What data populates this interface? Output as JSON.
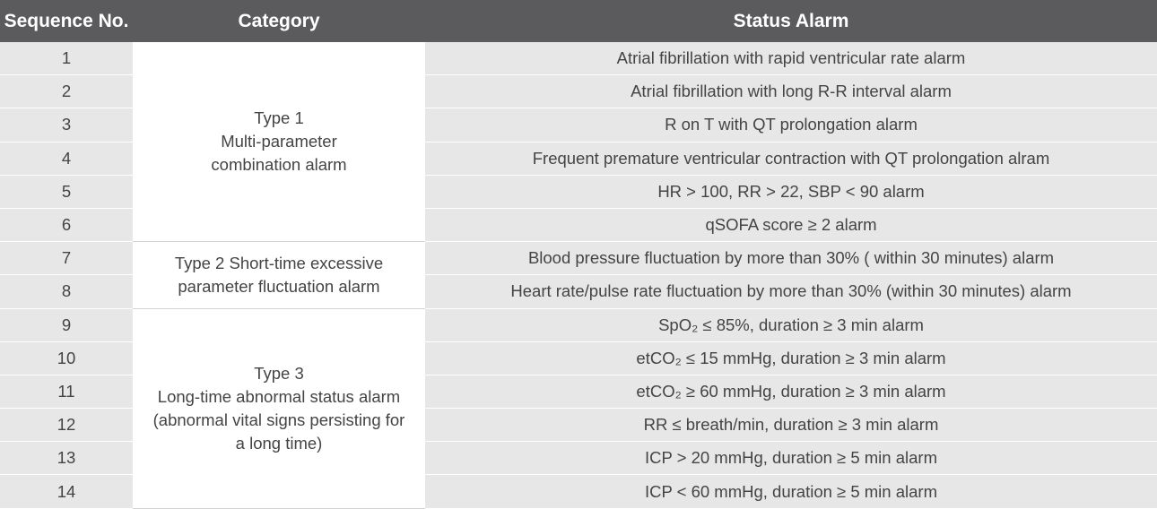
{
  "table": {
    "header": [
      "Sequence No.",
      "Category",
      "Status Alarm"
    ],
    "groups": [
      {
        "category": [
          "Type 1",
          "Multi-parameter",
          "combination alarm"
        ],
        "rows": [
          [
            1,
            "Atrial fibrillation with rapid ventricular rate alarm"
          ],
          [
            2,
            "Atrial fibrillation with long R-R interval alarm"
          ],
          [
            3,
            "R on T with QT prolongation alarm"
          ],
          [
            4,
            "Frequent premature ventricular contraction with QT prolongation alram"
          ],
          [
            5,
            "HR > 100, RR > 22, SBP < 90 alarm"
          ],
          [
            6,
            "qSOFA score ≥ 2 alarm"
          ]
        ]
      },
      {
        "category": [
          "Type 2 Short-time excessive",
          "parameter fluctuation alarm"
        ],
        "rows": [
          [
            7,
            "Blood pressure fluctuation by more than 30% ( within 30 minutes) alarm"
          ],
          [
            8,
            "Heart rate/pulse rate fluctuation by more than 30% (within 30 minutes) alarm"
          ]
        ]
      },
      {
        "category": [
          "Type 3",
          "Long-time abnormal status alarm",
          "(abnormal vital signs persisting for",
          "a long time)"
        ],
        "rows": [
          [
            9,
            "SpO₂ ≤ 85%, duration ≥ 3 min alarm"
          ],
          [
            10,
            "etCO₂ ≤ 15 mmHg, duration ≥ 3 min alarm"
          ],
          [
            11,
            "etCO₂ ≥ 60 mmHg, duration ≥ 3 min alarm"
          ],
          [
            12,
            "RR ≤ breath/min, duration ≥ 3 min alarm"
          ],
          [
            13,
            "ICP > 20 mmHg, duration ≥ 5 min alarm"
          ],
          [
            14,
            "ICP < 60 mmHg, duration ≥ 5 min alarm"
          ]
        ]
      }
    ]
  }
}
